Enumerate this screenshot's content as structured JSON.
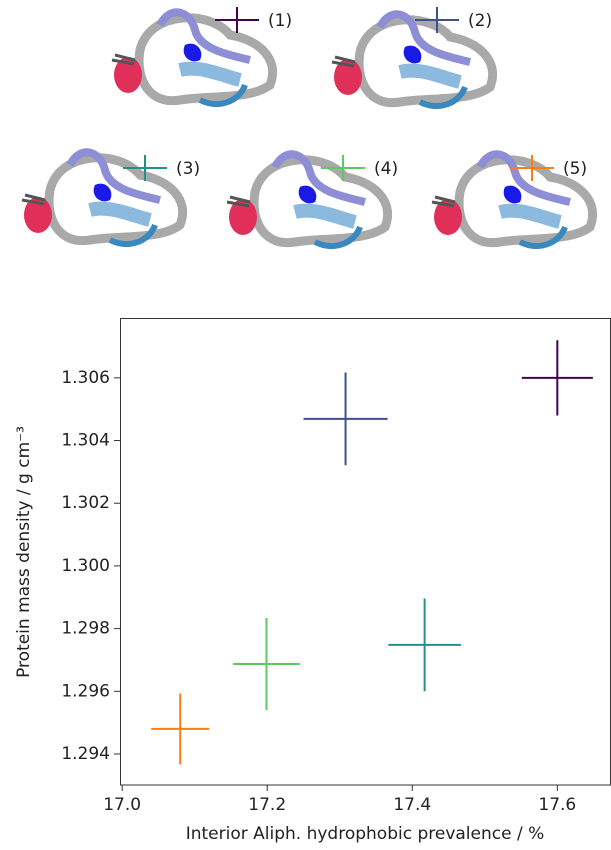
{
  "chart_data": {
    "type": "errorbar",
    "xlabel": "Interior Aliph. hydrophobic prevalence / %",
    "ylabel": "Protein mass density /  g cm⁻³",
    "xlim": [
      16.997,
      17.674
    ],
    "ylim": [
      1.29301,
      1.30791
    ],
    "xticks": [
      {
        "value": 17,
        "label": "17.0"
      },
      17.2,
      17.4,
      17.6
    ],
    "yticks": [
      1.294,
      1.296,
      1.298,
      {
        "value": 1.3,
        "label": "1.300"
      },
      1.302,
      1.304,
      1.306
    ],
    "series": [
      {
        "name": "(1)",
        "color": "#440154",
        "x": [
          17.6
        ],
        "values": [
          1.306
        ],
        "xerr": [
          0.049
        ],
        "yerr": [
          0.0012
        ]
      },
      {
        "name": "(2)",
        "color": "#3b528b",
        "x": [
          17.308
        ],
        "values": [
          1.30469
        ],
        "xerr": [
          0.058
        ],
        "yerr": [
          0.00148
        ]
      },
      {
        "name": "(3)",
        "color": "#21918c",
        "x": [
          17.417
        ],
        "values": [
          1.29748
        ],
        "xerr": [
          0.05
        ],
        "yerr": [
          0.00148
        ]
      },
      {
        "name": "(4)",
        "color": "#5ec962",
        "x": [
          17.199
        ],
        "values": [
          1.29687
        ],
        "xerr": [
          0.046
        ],
        "yerr": [
          0.00147
        ]
      },
      {
        "name": "(5)",
        "color": "#ff7f0e",
        "x": [
          17.08
        ],
        "values": [
          1.2948
        ],
        "xerr": [
          0.04
        ],
        "yerr": [
          0.00113
        ]
      }
    ]
  }
}
